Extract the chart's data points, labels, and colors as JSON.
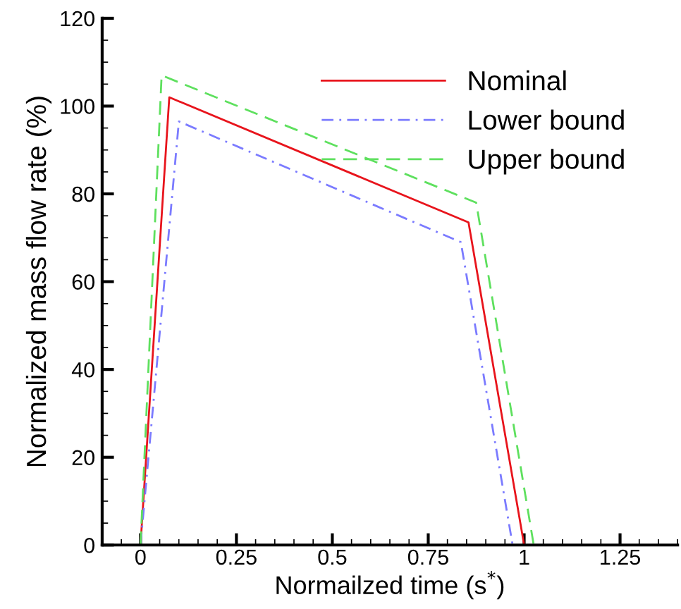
{
  "chart_data": {
    "type": "line",
    "xlabel": "Normailzed time (s$^{*}$)",
    "ylabel": "Normalized mass flow rate (%)",
    "xlim": [
      -0.1,
      1.4
    ],
    "ylim": [
      0,
      120
    ],
    "xticks": [
      0,
      0.25,
      0.5,
      0.75,
      1,
      1.25
    ],
    "yticks": [
      0,
      20,
      40,
      60,
      80,
      100,
      120
    ],
    "legend": "top right",
    "grid": false,
    "series": [
      {
        "name": "Nominal",
        "color": "#e8141c",
        "line_style": "solid",
        "x": [
          0,
          0.075,
          0.855,
          1.0
        ],
        "values": [
          0,
          102,
          73.5,
          0
        ]
      },
      {
        "name": "Lower bound",
        "color": "#7b7bff",
        "line_style": "dashdot",
        "x": [
          0,
          0.1,
          0.835,
          0.97
        ],
        "values": [
          0,
          96.5,
          69,
          0
        ]
      },
      {
        "name": "Upper bound",
        "color": "#5ee05e",
        "line_style": "dashed",
        "x": [
          0,
          0.055,
          0.875,
          1.025
        ],
        "values": [
          0,
          107,
          78,
          0
        ]
      }
    ]
  }
}
